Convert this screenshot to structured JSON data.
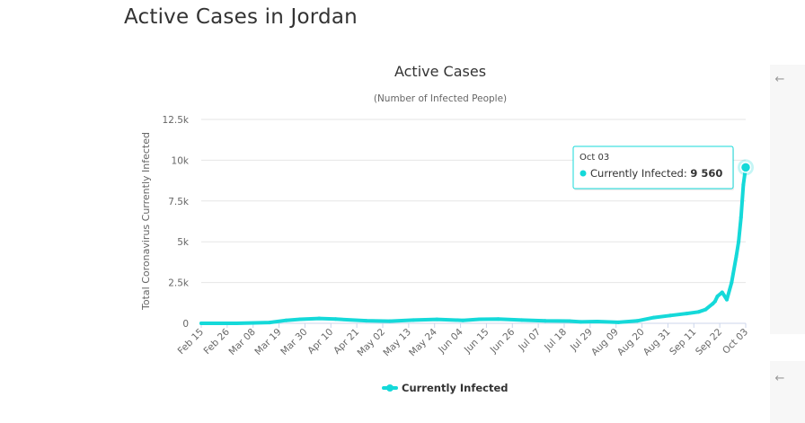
{
  "page": {
    "title": "Active Cases in Jordan"
  },
  "colors": {
    "series": "#15d9d9",
    "grid": "#e6e6e6",
    "axis": "#ccd6eb"
  },
  "icons": {
    "panel_arrow": "arrow-left-icon"
  },
  "chart_data": {
    "type": "line",
    "title": "Active Cases",
    "subtitle": "(Number of Infected People)",
    "ylabel": "Total Coronavirus Currently Infected",
    "xlabel": "",
    "ylim": [
      0,
      12500
    ],
    "yticks": [
      0,
      2500,
      5000,
      7500,
      10000,
      12500
    ],
    "ytick_labels": [
      "0",
      "2.5k",
      "5k",
      "7.5k",
      "10k",
      "12.5k"
    ],
    "xlim": [
      "2020-02-15",
      "2020-10-03"
    ],
    "xticks": [
      "2020-02-15",
      "2020-02-26",
      "2020-03-08",
      "2020-03-19",
      "2020-03-30",
      "2020-04-10",
      "2020-04-21",
      "2020-05-02",
      "2020-05-13",
      "2020-05-24",
      "2020-06-04",
      "2020-06-15",
      "2020-06-26",
      "2020-07-07",
      "2020-07-18",
      "2020-07-29",
      "2020-08-09",
      "2020-08-20",
      "2020-08-31",
      "2020-09-11",
      "2020-09-22",
      "2020-10-03"
    ],
    "xtick_labels": [
      "Feb 15",
      "Feb 26",
      "Mar 08",
      "Mar 19",
      "Mar 30",
      "Apr 10",
      "Apr 21",
      "May 02",
      "May 13",
      "May 24",
      "Jun 04",
      "Jun 15",
      "Jun 26",
      "Jul 07",
      "Jul 18",
      "Jul 29",
      "Aug 09",
      "Aug 20",
      "Aug 31",
      "Sep 11",
      "Sep 22",
      "Oct 03"
    ],
    "grid": true,
    "legend": "bottom-center",
    "series": [
      {
        "name": "Currently Infected",
        "x": [
          "2020-02-15",
          "2020-03-01",
          "2020-03-15",
          "2020-03-22",
          "2020-03-28",
          "2020-04-05",
          "2020-04-12",
          "2020-04-25",
          "2020-05-05",
          "2020-05-15",
          "2020-05-25",
          "2020-06-05",
          "2020-06-12",
          "2020-06-20",
          "2020-06-30",
          "2020-07-10",
          "2020-07-20",
          "2020-07-25",
          "2020-08-01",
          "2020-08-10",
          "2020-08-18",
          "2020-08-25",
          "2020-09-01",
          "2020-09-08",
          "2020-09-13",
          "2020-09-16",
          "2020-09-19",
          "2020-09-20",
          "2020-09-21",
          "2020-09-23",
          "2020-09-25",
          "2020-09-27",
          "2020-09-29",
          "2020-09-30",
          "2020-10-01",
          "2020-10-02",
          "2020-10-03"
        ],
        "values": [
          0,
          0,
          50,
          180,
          250,
          300,
          260,
          160,
          130,
          200,
          240,
          180,
          250,
          260,
          200,
          150,
          140,
          90,
          110,
          60,
          150,
          350,
          480,
          600,
          700,
          850,
          1200,
          1350,
          1650,
          1900,
          1450,
          2500,
          4100,
          5000,
          6500,
          8500,
          9560
        ]
      }
    ],
    "tooltip": {
      "date": "Oct 03",
      "label": "Currently Infected: ",
      "value": "9 560"
    }
  }
}
